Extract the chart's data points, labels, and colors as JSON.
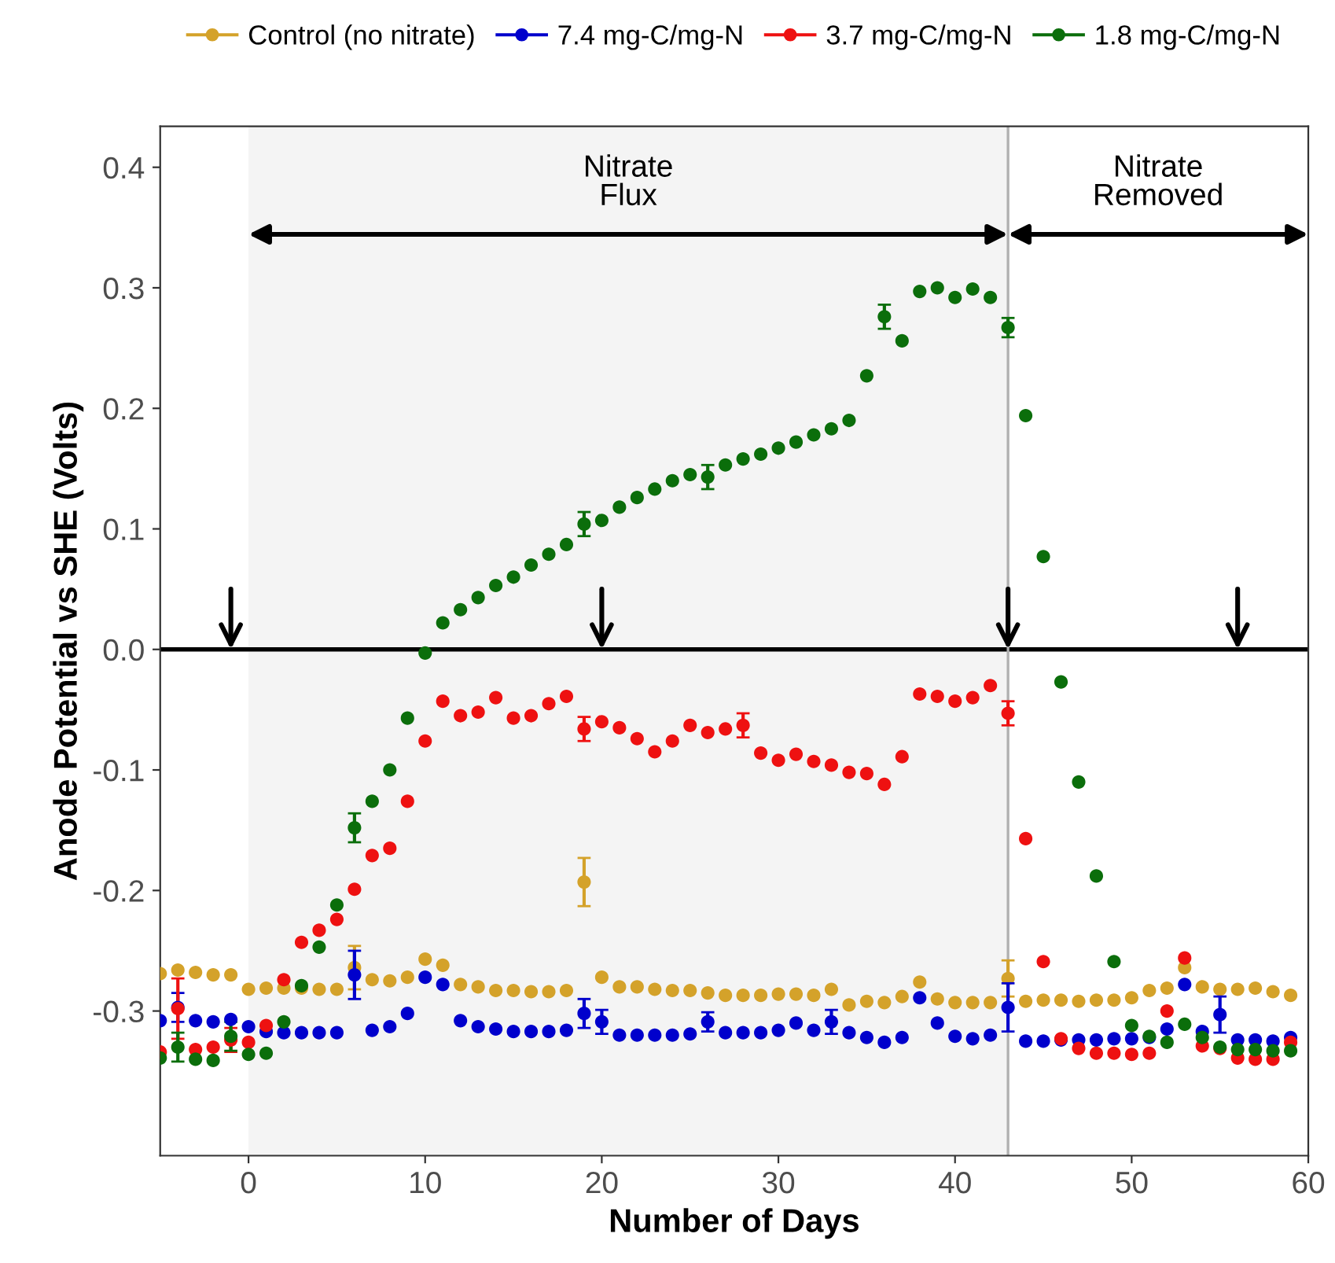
{
  "chart_data": {
    "type": "scatter",
    "xlabel": "Number of Days",
    "ylabel": "Anode Potential vs SHE (Volts)",
    "x": [
      -5,
      -4,
      -3,
      -2,
      -1,
      0,
      1,
      2,
      3,
      4,
      5,
      6,
      7,
      8,
      9,
      10,
      11,
      12,
      13,
      14,
      15,
      16,
      17,
      18,
      19,
      20,
      21,
      22,
      23,
      24,
      25,
      26,
      27,
      28,
      29,
      30,
      31,
      32,
      33,
      34,
      35,
      36,
      37,
      38,
      39,
      40,
      41,
      42,
      43,
      44,
      45,
      46,
      47,
      48,
      49,
      50,
      51,
      52,
      53,
      54,
      55,
      56,
      57,
      58,
      59
    ],
    "series": [
      {
        "name": "Control (no nitrate)",
        "color": "#d4a22a",
        "values": [
          -0.269,
          -0.266,
          -0.268,
          -0.27,
          -0.27,
          -0.282,
          -0.281,
          -0.281,
          -0.281,
          -0.282,
          -0.282,
          -0.264,
          -0.274,
          -0.275,
          -0.272,
          -0.257,
          -0.262,
          -0.278,
          -0.28,
          -0.283,
          -0.283,
          -0.284,
          -0.284,
          -0.283,
          -0.193,
          -0.272,
          -0.28,
          -0.28,
          -0.282,
          -0.283,
          -0.283,
          -0.285,
          -0.287,
          -0.287,
          -0.287,
          -0.286,
          -0.286,
          -0.287,
          -0.282,
          -0.295,
          -0.292,
          -0.293,
          -0.288,
          -0.276,
          -0.29,
          -0.293,
          -0.293,
          -0.293,
          -0.273,
          -0.292,
          -0.291,
          -0.291,
          -0.292,
          -0.291,
          -0.291,
          -0.289,
          -0.283,
          -0.281,
          -0.264,
          -0.28,
          -0.282,
          -0.282,
          -0.281,
          -0.284,
          -0.287
        ],
        "errors": [
          null,
          null,
          null,
          null,
          null,
          null,
          null,
          null,
          null,
          null,
          null,
          0.018,
          null,
          null,
          null,
          null,
          null,
          null,
          null,
          null,
          null,
          null,
          null,
          null,
          0.02,
          null,
          null,
          null,
          null,
          null,
          null,
          null,
          null,
          null,
          null,
          null,
          null,
          null,
          null,
          null,
          null,
          null,
          null,
          null,
          null,
          null,
          null,
          null,
          0.015,
          null,
          null,
          null,
          null,
          null,
          null,
          null,
          null,
          null,
          null,
          null,
          null,
          null,
          null,
          null,
          null
        ]
      },
      {
        "name": "7.4 mg-C/mg-N",
        "color": "#0000cc",
        "values": [
          -0.308,
          -0.297,
          -0.308,
          -0.309,
          -0.307,
          -0.313,
          -0.317,
          -0.318,
          -0.318,
          -0.318,
          -0.318,
          -0.27,
          -0.316,
          -0.313,
          -0.302,
          -0.272,
          -0.278,
          -0.308,
          -0.313,
          -0.315,
          -0.317,
          -0.317,
          -0.317,
          -0.316,
          -0.302,
          -0.309,
          -0.32,
          -0.32,
          -0.32,
          -0.32,
          -0.319,
          -0.309,
          -0.318,
          -0.318,
          -0.318,
          -0.316,
          -0.31,
          -0.316,
          -0.309,
          -0.318,
          -0.322,
          -0.326,
          -0.322,
          -0.289,
          -0.31,
          -0.321,
          -0.323,
          -0.32,
          -0.297,
          -0.325,
          -0.325,
          -0.324,
          -0.324,
          -0.324,
          -0.323,
          -0.323,
          -0.322,
          -0.315,
          -0.278,
          -0.317,
          -0.303,
          -0.324,
          -0.324,
          -0.325,
          -0.322
        ],
        "errors": [
          null,
          0.012,
          null,
          null,
          null,
          null,
          null,
          null,
          null,
          null,
          null,
          0.02,
          null,
          null,
          null,
          null,
          null,
          null,
          null,
          null,
          null,
          null,
          null,
          null,
          0.012,
          0.01,
          null,
          null,
          null,
          null,
          null,
          0.008,
          null,
          null,
          null,
          null,
          null,
          null,
          0.01,
          null,
          null,
          null,
          null,
          null,
          null,
          null,
          null,
          null,
          0.02,
          null,
          null,
          null,
          null,
          null,
          null,
          null,
          null,
          null,
          null,
          null,
          0.015,
          null,
          null,
          null,
          null
        ]
      },
      {
        "name": "3.7 mg-C/mg-N",
        "color": "#ee1111",
        "values": [
          -0.334,
          -0.298,
          -0.332,
          -0.33,
          -0.324,
          -0.326,
          -0.312,
          -0.274,
          -0.243,
          -0.233,
          -0.224,
          -0.199,
          -0.171,
          -0.165,
          -0.126,
          -0.076,
          -0.043,
          -0.055,
          -0.052,
          -0.04,
          -0.057,
          -0.055,
          -0.045,
          -0.039,
          -0.066,
          -0.06,
          -0.065,
          -0.074,
          -0.085,
          -0.076,
          -0.063,
          -0.069,
          -0.066,
          -0.063,
          -0.086,
          -0.092,
          -0.087,
          -0.093,
          -0.096,
          -0.102,
          -0.103,
          -0.112,
          -0.089,
          -0.037,
          -0.039,
          -0.043,
          -0.04,
          -0.03,
          -0.053,
          -0.157,
          -0.259,
          -0.323,
          -0.331,
          -0.335,
          -0.335,
          -0.336,
          -0.335,
          -0.3,
          -0.256,
          -0.329,
          -0.331,
          -0.339,
          -0.34,
          -0.34,
          -0.326
        ],
        "errors": [
          null,
          0.025,
          null,
          null,
          0.01,
          null,
          null,
          null,
          null,
          null,
          null,
          null,
          null,
          null,
          null,
          null,
          null,
          null,
          null,
          null,
          null,
          null,
          null,
          null,
          0.01,
          null,
          null,
          null,
          null,
          null,
          null,
          null,
          null,
          0.01,
          null,
          null,
          null,
          null,
          null,
          null,
          null,
          null,
          null,
          null,
          null,
          null,
          null,
          null,
          0.01,
          null,
          null,
          null,
          null,
          null,
          null,
          null,
          null,
          null,
          null,
          null,
          null,
          null,
          null,
          null,
          null
        ]
      },
      {
        "name": "1.8 mg-C/mg-N",
        "color": "#0b6e0b",
        "values": [
          -0.339,
          -0.33,
          -0.34,
          -0.341,
          -0.321,
          -0.336,
          -0.335,
          -0.309,
          -0.279,
          -0.247,
          -0.212,
          -0.148,
          -0.126,
          -0.1,
          -0.057,
          -0.003,
          0.022,
          0.033,
          0.043,
          0.053,
          0.06,
          0.07,
          0.079,
          0.087,
          0.104,
          0.107,
          0.118,
          0.126,
          0.133,
          0.14,
          0.145,
          0.143,
          0.153,
          0.158,
          0.162,
          0.167,
          0.172,
          0.178,
          0.183,
          0.19,
          0.227,
          0.276,
          0.256,
          0.297,
          0.3,
          0.292,
          0.299,
          0.292,
          0.267,
          0.194,
          0.077,
          -0.027,
          -0.11,
          -0.188,
          -0.259,
          -0.312,
          -0.321,
          -0.326,
          -0.311,
          -0.322,
          -0.33,
          -0.332,
          -0.332,
          -0.333,
          -0.333
        ],
        "errors": [
          null,
          0.012,
          null,
          null,
          0.012,
          null,
          null,
          null,
          null,
          null,
          null,
          0.012,
          null,
          null,
          null,
          null,
          null,
          null,
          null,
          null,
          null,
          null,
          null,
          null,
          0.01,
          null,
          null,
          null,
          null,
          null,
          null,
          0.01,
          null,
          null,
          null,
          null,
          null,
          null,
          null,
          null,
          null,
          0.01,
          null,
          null,
          null,
          null,
          null,
          null,
          0.008,
          null,
          null,
          null,
          null,
          null,
          null,
          null,
          null,
          null,
          null,
          null,
          null,
          null,
          null,
          null,
          null
        ]
      }
    ],
    "xlim": [
      -5,
      60
    ],
    "ylim": [
      -0.42,
      0.434
    ],
    "xticks": [
      0,
      10,
      20,
      30,
      40,
      50,
      60
    ],
    "yticks": [
      {
        "value": -0.3,
        "label": "-0.3"
      },
      {
        "value": -0.2,
        "label": "-0.2"
      },
      {
        "value": -0.1,
        "label": "-0.1"
      },
      {
        "value": 0,
        "label": "0.0"
      },
      {
        "value": 0.1,
        "label": "0.1"
      },
      {
        "value": 0.2,
        "label": "0.2"
      },
      {
        "value": 0.3,
        "label": "0.3"
      },
      {
        "value": 0.4,
        "label": "0.4"
      }
    ],
    "ref_lines": [
      {
        "axis": "y",
        "value": 0,
        "color": "#000000"
      },
      {
        "axis": "x",
        "value": 43,
        "color": "#b0b0b0"
      }
    ],
    "bands": [
      {
        "axis": "x",
        "from": 0,
        "to": 43,
        "label": "Nitrate\nFlux",
        "color": "#f4f4f4"
      }
    ],
    "annotations": [
      "Nitrate\nRemoved"
    ],
    "marker": "circle",
    "grid": false,
    "legend": "top"
  }
}
